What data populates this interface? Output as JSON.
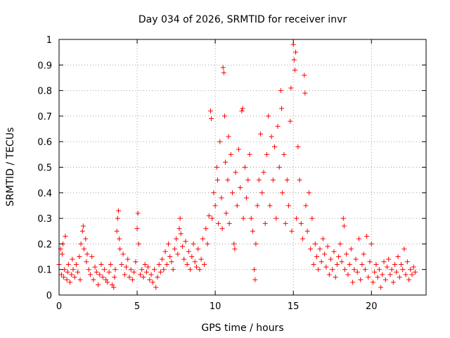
{
  "chart_data": {
    "type": "scatter",
    "title": "Day 034 of 2026, SRMTID for receiver invr",
    "xlabel": "GPS time / hours",
    "ylabel": "SRMTID / TECUs",
    "xlim": [
      0,
      23.5
    ],
    "ylim": [
      0,
      1
    ],
    "xticks": [
      0,
      5,
      10,
      15,
      20
    ],
    "xtick_labels": [
      "0",
      "5",
      "10",
      "15",
      "20"
    ],
    "yticks": [
      0,
      0.1,
      0.2,
      0.3,
      0.4,
      0.5,
      0.6,
      0.7,
      0.8,
      0.9,
      1
    ],
    "ytick_labels": [
      "0",
      "0.1",
      "0.2",
      "0.3",
      "0.4",
      "0.5",
      "0.6",
      "0.7",
      "0.8",
      "0.9",
      "1"
    ],
    "grid": true,
    "marker": "plus",
    "color": "#ff0000",
    "series": [
      {
        "name": "SRMTID",
        "points": [
          [
            0.0,
            0.12
          ],
          [
            0.1,
            0.18
          ],
          [
            0.15,
            0.08
          ],
          [
            0.2,
            0.16
          ],
          [
            0.25,
            0.2
          ],
          [
            0.3,
            0.07
          ],
          [
            0.35,
            0.1
          ],
          [
            0.4,
            0.23
          ],
          [
            0.5,
            0.06
          ],
          [
            0.55,
            0.09
          ],
          [
            0.6,
            0.12
          ],
          [
            0.7,
            0.05
          ],
          [
            0.8,
            0.08
          ],
          [
            0.85,
            0.14
          ],
          [
            0.9,
            0.1
          ],
          [
            1.0,
            0.07
          ],
          [
            1.1,
            0.12
          ],
          [
            1.2,
            0.09
          ],
          [
            1.3,
            0.15
          ],
          [
            1.35,
            0.06
          ],
          [
            1.4,
            0.2
          ],
          [
            1.5,
            0.25
          ],
          [
            1.55,
            0.27
          ],
          [
            1.6,
            0.18
          ],
          [
            1.7,
            0.22
          ],
          [
            1.75,
            0.13
          ],
          [
            1.8,
            0.16
          ],
          [
            1.9,
            0.1
          ],
          [
            2.0,
            0.08
          ],
          [
            2.1,
            0.15
          ],
          [
            2.2,
            0.06
          ],
          [
            2.3,
            0.11
          ],
          [
            2.4,
            0.09
          ],
          [
            2.5,
            0.04
          ],
          [
            2.6,
            0.08
          ],
          [
            2.7,
            0.12
          ],
          [
            2.8,
            0.07
          ],
          [
            2.9,
            0.1
          ],
          [
            3.0,
            0.06
          ],
          [
            3.1,
            0.05
          ],
          [
            3.2,
            0.09
          ],
          [
            3.3,
            0.12
          ],
          [
            3.4,
            0.04
          ],
          [
            3.5,
            0.03
          ],
          [
            3.55,
            0.07
          ],
          [
            3.6,
            0.1
          ],
          [
            3.7,
            0.25
          ],
          [
            3.75,
            0.3
          ],
          [
            3.8,
            0.33
          ],
          [
            3.85,
            0.22
          ],
          [
            3.9,
            0.18
          ],
          [
            4.0,
            0.12
          ],
          [
            4.1,
            0.16
          ],
          [
            4.2,
            0.08
          ],
          [
            4.3,
            0.11
          ],
          [
            4.4,
            0.14
          ],
          [
            4.5,
            0.07
          ],
          [
            4.6,
            0.1
          ],
          [
            4.7,
            0.06
          ],
          [
            4.8,
            0.09
          ],
          [
            4.9,
            0.13
          ],
          [
            5.0,
            0.26
          ],
          [
            5.05,
            0.32
          ],
          [
            5.1,
            0.2
          ],
          [
            5.2,
            0.08
          ],
          [
            5.3,
            0.1
          ],
          [
            5.4,
            0.07
          ],
          [
            5.5,
            0.12
          ],
          [
            5.6,
            0.09
          ],
          [
            5.7,
            0.11
          ],
          [
            5.8,
            0.06
          ],
          [
            5.9,
            0.08
          ],
          [
            6.0,
            0.05
          ],
          [
            6.1,
            0.1
          ],
          [
            6.2,
            0.03
          ],
          [
            6.3,
            0.07
          ],
          [
            6.4,
            0.12
          ],
          [
            6.5,
            0.09
          ],
          [
            6.6,
            0.14
          ],
          [
            6.7,
            0.1
          ],
          [
            6.8,
            0.17
          ],
          [
            6.9,
            0.12
          ],
          [
            7.0,
            0.2
          ],
          [
            7.1,
            0.15
          ],
          [
            7.2,
            0.13
          ],
          [
            7.3,
            0.1
          ],
          [
            7.4,
            0.18
          ],
          [
            7.5,
            0.22
          ],
          [
            7.6,
            0.16
          ],
          [
            7.7,
            0.26
          ],
          [
            7.75,
            0.3
          ],
          [
            7.8,
            0.24
          ],
          [
            7.9,
            0.19
          ],
          [
            8.0,
            0.14
          ],
          [
            8.1,
            0.21
          ],
          [
            8.2,
            0.12
          ],
          [
            8.3,
            0.17
          ],
          [
            8.4,
            0.1
          ],
          [
            8.5,
            0.15
          ],
          [
            8.6,
            0.2
          ],
          [
            8.7,
            0.13
          ],
          [
            8.8,
            0.11
          ],
          [
            8.9,
            0.18
          ],
          [
            9.0,
            0.1
          ],
          [
            9.1,
            0.14
          ],
          [
            9.2,
            0.22
          ],
          [
            9.3,
            0.12
          ],
          [
            9.4,
            0.26
          ],
          [
            9.5,
            0.2
          ],
          [
            9.6,
            0.31
          ],
          [
            9.7,
            0.72
          ],
          [
            9.75,
            0.69
          ],
          [
            9.8,
            0.3
          ],
          [
            9.9,
            0.4
          ],
          [
            10.0,
            0.35
          ],
          [
            10.1,
            0.5
          ],
          [
            10.15,
            0.45
          ],
          [
            10.2,
            0.28
          ],
          [
            10.3,
            0.6
          ],
          [
            10.4,
            0.38
          ],
          [
            10.45,
            0.26
          ],
          [
            10.5,
            0.89
          ],
          [
            10.55,
            0.87
          ],
          [
            10.6,
            0.7
          ],
          [
            10.65,
            0.52
          ],
          [
            10.7,
            0.32
          ],
          [
            10.8,
            0.45
          ],
          [
            10.85,
            0.62
          ],
          [
            10.9,
            0.28
          ],
          [
            11.0,
            0.55
          ],
          [
            11.1,
            0.4
          ],
          [
            11.2,
            0.2
          ],
          [
            11.25,
            0.18
          ],
          [
            11.3,
            0.48
          ],
          [
            11.4,
            0.35
          ],
          [
            11.5,
            0.57
          ],
          [
            11.6,
            0.42
          ],
          [
            11.7,
            0.72
          ],
          [
            11.75,
            0.73
          ],
          [
            11.8,
            0.3
          ],
          [
            11.9,
            0.5
          ],
          [
            12.0,
            0.38
          ],
          [
            12.1,
            0.45
          ],
          [
            12.2,
            0.55
          ],
          [
            12.3,
            0.3
          ],
          [
            12.4,
            0.25
          ],
          [
            12.5,
            0.1
          ],
          [
            12.55,
            0.06
          ],
          [
            12.6,
            0.2
          ],
          [
            12.7,
            0.35
          ],
          [
            12.8,
            0.45
          ],
          [
            12.9,
            0.63
          ],
          [
            13.0,
            0.4
          ],
          [
            13.1,
            0.48
          ],
          [
            13.2,
            0.28
          ],
          [
            13.3,
            0.55
          ],
          [
            13.4,
            0.7
          ],
          [
            13.5,
            0.35
          ],
          [
            13.6,
            0.62
          ],
          [
            13.7,
            0.45
          ],
          [
            13.8,
            0.58
          ],
          [
            13.9,
            0.3
          ],
          [
            14.0,
            0.66
          ],
          [
            14.1,
            0.5
          ],
          [
            14.2,
            0.8
          ],
          [
            14.25,
            0.73
          ],
          [
            14.3,
            0.4
          ],
          [
            14.4,
            0.55
          ],
          [
            14.5,
            0.28
          ],
          [
            14.6,
            0.45
          ],
          [
            14.7,
            0.35
          ],
          [
            14.8,
            0.68
          ],
          [
            14.85,
            0.81
          ],
          [
            14.9,
            0.25
          ],
          [
            15.0,
            0.98
          ],
          [
            15.05,
            0.92
          ],
          [
            15.1,
            0.88
          ],
          [
            15.15,
            0.95
          ],
          [
            15.2,
            0.3
          ],
          [
            15.3,
            0.58
          ],
          [
            15.4,
            0.45
          ],
          [
            15.5,
            0.28
          ],
          [
            15.6,
            0.22
          ],
          [
            15.7,
            0.86
          ],
          [
            15.75,
            0.79
          ],
          [
            15.8,
            0.35
          ],
          [
            15.9,
            0.25
          ],
          [
            16.0,
            0.4
          ],
          [
            16.1,
            0.18
          ],
          [
            16.2,
            0.3
          ],
          [
            16.3,
            0.12
          ],
          [
            16.4,
            0.2
          ],
          [
            16.5,
            0.15
          ],
          [
            16.6,
            0.1
          ],
          [
            16.7,
            0.18
          ],
          [
            16.8,
            0.13
          ],
          [
            16.9,
            0.22
          ],
          [
            17.0,
            0.16
          ],
          [
            17.1,
            0.11
          ],
          [
            17.2,
            0.19
          ],
          [
            17.3,
            0.08
          ],
          [
            17.4,
            0.14
          ],
          [
            17.5,
            0.1
          ],
          [
            17.6,
            0.17
          ],
          [
            17.7,
            0.07
          ],
          [
            17.8,
            0.12
          ],
          [
            17.9,
            0.15
          ],
          [
            18.0,
            0.2
          ],
          [
            18.1,
            0.13
          ],
          [
            18.2,
            0.3
          ],
          [
            18.25,
            0.27
          ],
          [
            18.3,
            0.1
          ],
          [
            18.4,
            0.16
          ],
          [
            18.5,
            0.08
          ],
          [
            18.6,
            0.12
          ],
          [
            18.7,
            0.18
          ],
          [
            18.8,
            0.05
          ],
          [
            18.9,
            0.1
          ],
          [
            19.0,
            0.14
          ],
          [
            19.1,
            0.09
          ],
          [
            19.2,
            0.22
          ],
          [
            19.3,
            0.06
          ],
          [
            19.4,
            0.12
          ],
          [
            19.5,
            0.16
          ],
          [
            19.6,
            0.1
          ],
          [
            19.7,
            0.23
          ],
          [
            19.8,
            0.07
          ],
          [
            19.9,
            0.13
          ],
          [
            20.0,
            0.2
          ],
          [
            20.1,
            0.05
          ],
          [
            20.2,
            0.09
          ],
          [
            20.3,
            0.12
          ],
          [
            20.4,
            0.07
          ],
          [
            20.5,
            0.1
          ],
          [
            20.6,
            0.03
          ],
          [
            20.7,
            0.08
          ],
          [
            20.8,
            0.13
          ],
          [
            20.9,
            0.06
          ],
          [
            21.0,
            0.11
          ],
          [
            21.1,
            0.14
          ],
          [
            21.2,
            0.08
          ],
          [
            21.3,
            0.1
          ],
          [
            21.4,
            0.05
          ],
          [
            21.5,
            0.12
          ],
          [
            21.6,
            0.09
          ],
          [
            21.7,
            0.15
          ],
          [
            21.8,
            0.07
          ],
          [
            21.9,
            0.12
          ],
          [
            22.0,
            0.1
          ],
          [
            22.1,
            0.18
          ],
          [
            22.2,
            0.08
          ],
          [
            22.3,
            0.13
          ],
          [
            22.4,
            0.06
          ],
          [
            22.5,
            0.1
          ],
          [
            22.6,
            0.08
          ],
          [
            22.7,
            0.11
          ],
          [
            22.8,
            0.09
          ]
        ]
      }
    ]
  }
}
